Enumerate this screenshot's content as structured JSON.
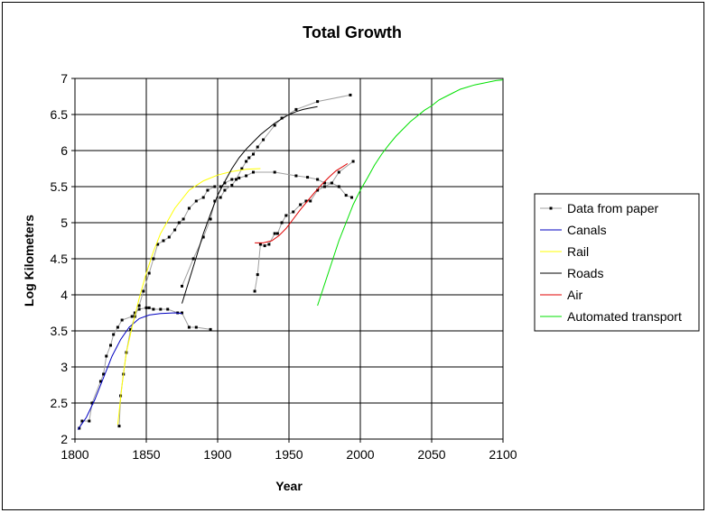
{
  "chart_data": {
    "type": "line",
    "title": "Total Growth",
    "xlabel": "Year",
    "ylabel": "Log Kilometers",
    "xlim": [
      1800,
      2100
    ],
    "ylim": [
      2,
      7
    ],
    "xticks": [
      1800,
      1850,
      1900,
      1950,
      2000,
      2050,
      2100
    ],
    "yticks": [
      2,
      2.5,
      3,
      3.5,
      4,
      4.5,
      5,
      5.5,
      6,
      6.5,
      7
    ],
    "grid": true,
    "legend_position": "right",
    "series": [
      {
        "name": "Data from paper",
        "color": "#a0a0a0",
        "markers": true,
        "segments": [
          [
            [
              1803,
              2.15
            ],
            [
              1805,
              2.25
            ],
            [
              1810,
              2.25
            ],
            [
              1812,
              2.5
            ],
            [
              1818,
              2.8
            ],
            [
              1820,
              2.9
            ],
            [
              1822,
              3.15
            ],
            [
              1825,
              3.3
            ],
            [
              1827,
              3.45
            ],
            [
              1830,
              3.55
            ],
            [
              1833,
              3.65
            ],
            [
              1840,
              3.7
            ],
            [
              1842,
              3.75
            ],
            [
              1845,
              3.8
            ],
            [
              1850,
              3.82
            ],
            [
              1852,
              3.82
            ],
            [
              1855,
              3.8
            ],
            [
              1860,
              3.8
            ],
            [
              1865,
              3.8
            ],
            [
              1872,
              3.75
            ],
            [
              1875,
              3.75
            ],
            [
              1880,
              3.55
            ],
            [
              1885,
              3.55
            ],
            [
              1895,
              3.52
            ]
          ],
          [
            [
              1831,
              2.18
            ],
            [
              1832,
              2.6
            ],
            [
              1834,
              2.9
            ],
            [
              1836,
              3.2
            ],
            [
              1839,
              3.52
            ],
            [
              1842,
              3.7
            ],
            [
              1845,
              3.85
            ],
            [
              1848,
              4.05
            ],
            [
              1852,
              4.3
            ],
            [
              1855,
              4.5
            ],
            [
              1858,
              4.7
            ],
            [
              1862,
              4.75
            ],
            [
              1866,
              4.8
            ],
            [
              1870,
              4.9
            ],
            [
              1873,
              5.0
            ],
            [
              1876,
              5.05
            ],
            [
              1880,
              5.2
            ],
            [
              1885,
              5.3
            ],
            [
              1890,
              5.35
            ],
            [
              1893,
              5.45
            ],
            [
              1898,
              5.5
            ],
            [
              1902,
              5.5
            ],
            [
              1905,
              5.55
            ],
            [
              1910,
              5.6
            ],
            [
              1915,
              5.62
            ],
            [
              1920,
              5.65
            ],
            [
              1925,
              5.7
            ],
            [
              1940,
              5.7
            ],
            [
              1955,
              5.65
            ],
            [
              1963,
              5.63
            ],
            [
              1970,
              5.6
            ],
            [
              1975,
              5.55
            ],
            [
              1980,
              5.55
            ],
            [
              1985,
              5.5
            ],
            [
              1990,
              5.38
            ],
            [
              1994,
              5.35
            ]
          ],
          [
            [
              1875,
              4.12
            ],
            [
              1883,
              4.5
            ],
            [
              1890,
              4.8
            ],
            [
              1895,
              5.05
            ],
            [
              1898,
              5.3
            ],
            [
              1902,
              5.35
            ],
            [
              1905,
              5.45
            ],
            [
              1910,
              5.52
            ],
            [
              1913,
              5.6
            ],
            [
              1917,
              5.75
            ],
            [
              1920,
              5.85
            ],
            [
              1922,
              5.9
            ],
            [
              1925,
              5.95
            ],
            [
              1928,
              6.05
            ],
            [
              1932,
              6.15
            ],
            [
              1940,
              6.35
            ],
            [
              1945,
              6.45
            ],
            [
              1955,
              6.57
            ],
            [
              1970,
              6.68
            ],
            [
              1993,
              6.77
            ]
          ],
          [
            [
              1926,
              4.05
            ],
            [
              1928,
              4.28
            ],
            [
              1930,
              4.7
            ],
            [
              1933,
              4.68
            ],
            [
              1936,
              4.7
            ],
            [
              1940,
              4.85
            ],
            [
              1942,
              4.85
            ],
            [
              1945,
              5.0
            ],
            [
              1948,
              5.1
            ],
            [
              1953,
              5.15
            ],
            [
              1958,
              5.25
            ],
            [
              1962,
              5.3
            ],
            [
              1965,
              5.3
            ],
            [
              1970,
              5.45
            ],
            [
              1975,
              5.5
            ],
            [
              1980,
              5.55
            ],
            [
              1985,
              5.7
            ],
            [
              1995,
              5.85
            ]
          ]
        ]
      },
      {
        "name": "Canals",
        "color": "#0000c0",
        "markers": false,
        "points": [
          [
            1802,
            2.13
          ],
          [
            1808,
            2.3
          ],
          [
            1814,
            2.55
          ],
          [
            1820,
            2.85
          ],
          [
            1826,
            3.15
          ],
          [
            1832,
            3.38
          ],
          [
            1838,
            3.55
          ],
          [
            1845,
            3.67
          ],
          [
            1852,
            3.72
          ],
          [
            1860,
            3.74
          ],
          [
            1870,
            3.75
          ],
          [
            1875,
            3.74
          ]
        ]
      },
      {
        "name": "Rail",
        "color": "#ffff00",
        "markers": false,
        "points": [
          [
            1830,
            2.2
          ],
          [
            1833,
            2.75
          ],
          [
            1836,
            3.2
          ],
          [
            1840,
            3.55
          ],
          [
            1845,
            3.95
          ],
          [
            1850,
            4.3
          ],
          [
            1855,
            4.6
          ],
          [
            1860,
            4.85
          ],
          [
            1870,
            5.2
          ],
          [
            1880,
            5.45
          ],
          [
            1890,
            5.58
          ],
          [
            1900,
            5.66
          ],
          [
            1910,
            5.71
          ],
          [
            1920,
            5.74
          ],
          [
            1930,
            5.75
          ]
        ]
      },
      {
        "name": "Roads",
        "color": "#000000",
        "markers": false,
        "points": [
          [
            1875,
            3.88
          ],
          [
            1880,
            4.2
          ],
          [
            1885,
            4.52
          ],
          [
            1890,
            4.85
          ],
          [
            1895,
            5.12
          ],
          [
            1900,
            5.38
          ],
          [
            1905,
            5.57
          ],
          [
            1910,
            5.75
          ],
          [
            1915,
            5.9
          ],
          [
            1920,
            6.02
          ],
          [
            1925,
            6.12
          ],
          [
            1930,
            6.22
          ],
          [
            1935,
            6.3
          ],
          [
            1940,
            6.38
          ],
          [
            1945,
            6.44
          ],
          [
            1950,
            6.5
          ],
          [
            1955,
            6.54
          ],
          [
            1960,
            6.57
          ],
          [
            1965,
            6.59
          ],
          [
            1970,
            6.61
          ]
        ]
      },
      {
        "name": "Air",
        "color": "#e00000",
        "markers": false,
        "points": [
          [
            1926,
            4.72
          ],
          [
            1932,
            4.72
          ],
          [
            1938,
            4.75
          ],
          [
            1943,
            4.82
          ],
          [
            1948,
            4.92
          ],
          [
            1953,
            5.05
          ],
          [
            1958,
            5.18
          ],
          [
            1963,
            5.3
          ],
          [
            1968,
            5.42
          ],
          [
            1973,
            5.53
          ],
          [
            1978,
            5.63
          ],
          [
            1983,
            5.72
          ],
          [
            1988,
            5.78
          ],
          [
            1991,
            5.82
          ]
        ]
      },
      {
        "name": "Automated transport",
        "color": "#00e000",
        "markers": false,
        "points": [
          [
            1970,
            3.85
          ],
          [
            1975,
            4.15
          ],
          [
            1980,
            4.45
          ],
          [
            1985,
            4.75
          ],
          [
            1990,
            5.0
          ],
          [
            1995,
            5.25
          ],
          [
            2000,
            5.45
          ],
          [
            2005,
            5.62
          ],
          [
            2010,
            5.8
          ],
          [
            2015,
            5.95
          ],
          [
            2020,
            6.08
          ],
          [
            2025,
            6.2
          ],
          [
            2030,
            6.3
          ],
          [
            2035,
            6.4
          ],
          [
            2040,
            6.48
          ],
          [
            2045,
            6.56
          ],
          [
            2050,
            6.62
          ],
          [
            2055,
            6.7
          ],
          [
            2060,
            6.75
          ],
          [
            2065,
            6.8
          ],
          [
            2070,
            6.85
          ],
          [
            2075,
            6.88
          ],
          [
            2080,
            6.91
          ],
          [
            2085,
            6.93
          ],
          [
            2090,
            6.95
          ],
          [
            2095,
            6.97
          ],
          [
            2100,
            6.98
          ]
        ]
      }
    ]
  }
}
